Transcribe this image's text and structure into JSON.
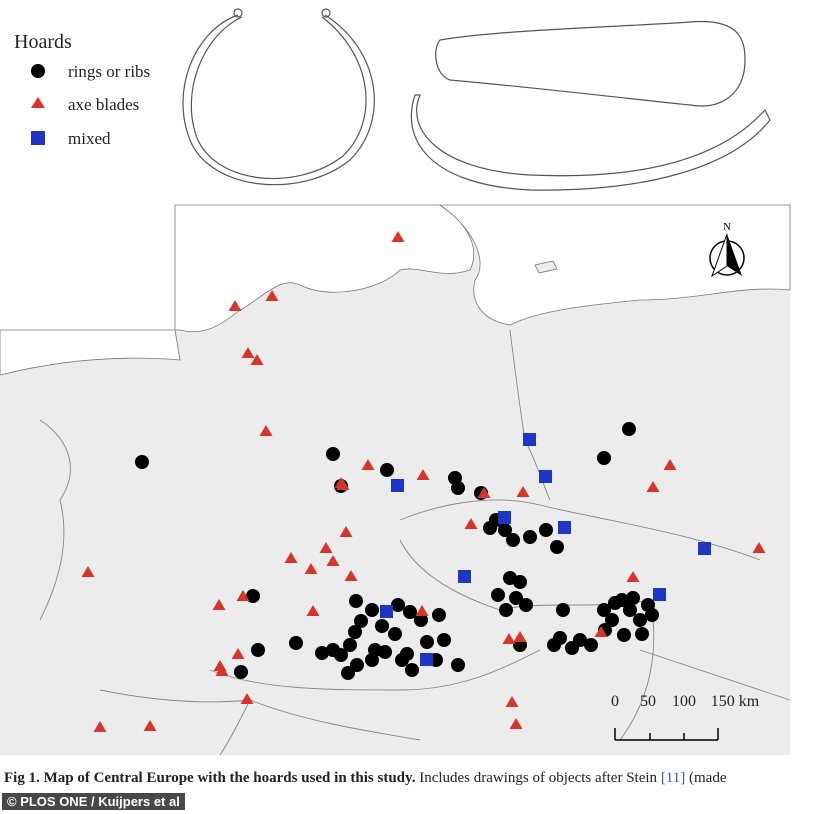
{
  "legend": {
    "title": "Hoards",
    "items": [
      "rings or ribs",
      "axe blades",
      "mixed"
    ]
  },
  "north": "N",
  "scale": [
    "0",
    "50",
    "100",
    "150 km"
  ],
  "caption": {
    "bold": "Fig 1. Map of Central Europe with the hoards used in this study.",
    "text": "Includes drawings of objects after Stein",
    "ref": "[11]",
    "tail": "(made"
  },
  "watermark": "© PLOS ONE / Kuijpers et al"
}
